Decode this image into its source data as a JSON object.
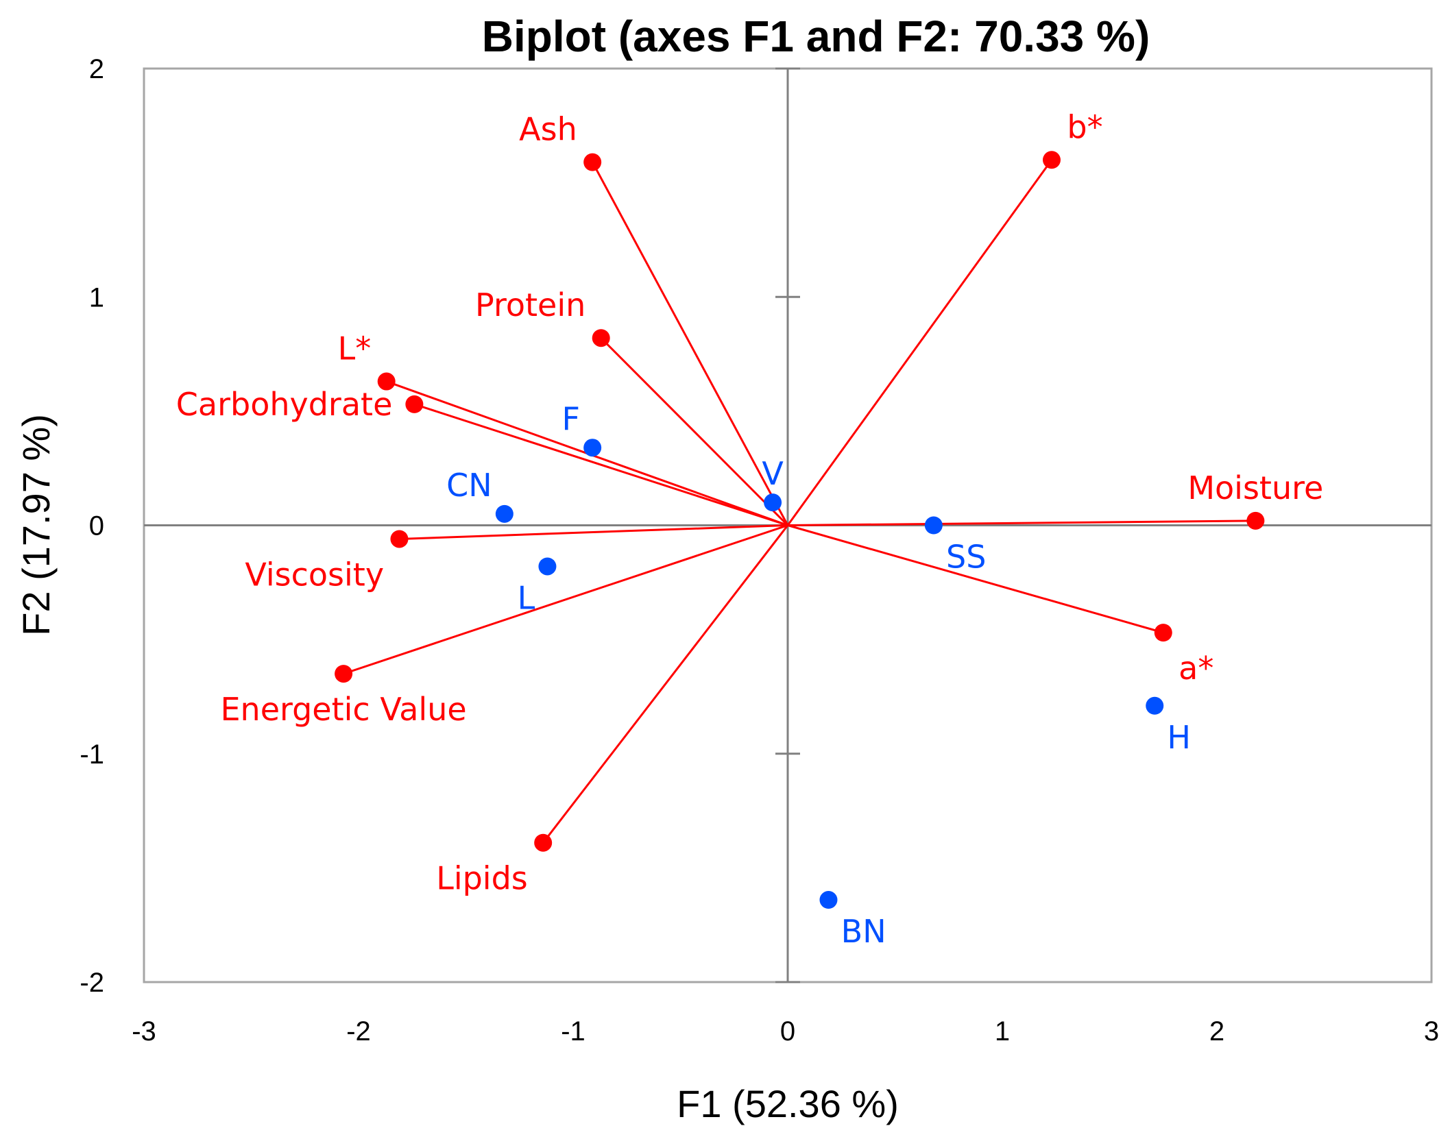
{
  "chart_data": {
    "type": "scatter",
    "subtype": "biplot",
    "title": "Biplot (axes F1 and F2: 70.33 %)",
    "xlabel": "F1 (52.36 %)",
    "ylabel": "F2 (17.97 %)",
    "xlim": [
      -3,
      3
    ],
    "ylim": [
      -2,
      2
    ],
    "xticks": [
      "-3",
      "-2",
      "-1",
      "0",
      "1",
      "2",
      "3"
    ],
    "yticks": [
      "2",
      "1",
      "0",
      "-1",
      "-2"
    ],
    "colors": {
      "variables": "#ff0000",
      "observations": "#0050ff",
      "axes": "#808080",
      "frame": "#a6a6a6"
    },
    "variables": [
      {
        "name": "Ash",
        "x": -0.91,
        "y": 1.59,
        "label_pos": "above-left"
      },
      {
        "name": "b*",
        "x": 1.23,
        "y": 1.6,
        "label_pos": "above-right"
      },
      {
        "name": "Protein",
        "x": -0.87,
        "y": 0.82,
        "label_pos": "above-left"
      },
      {
        "name": "L*",
        "x": -1.87,
        "y": 0.63,
        "label_pos": "above-left"
      },
      {
        "name": "Carbohydrate",
        "x": -1.74,
        "y": 0.53,
        "label_pos": "left"
      },
      {
        "name": "Moisture",
        "x": 2.18,
        "y": 0.02,
        "label_pos": "above"
      },
      {
        "name": "Viscosity",
        "x": -1.81,
        "y": -0.06,
        "label_pos": "below-left"
      },
      {
        "name": "a*",
        "x": 1.75,
        "y": -0.47,
        "label_pos": "below-right"
      },
      {
        "name": "Energetic Value",
        "x": -2.07,
        "y": -0.65,
        "label_pos": "below"
      },
      {
        "name": "Lipids",
        "x": -1.14,
        "y": -1.39,
        "label_pos": "below-left"
      }
    ],
    "observations": [
      {
        "name": "F",
        "x": -0.91,
        "y": 0.34,
        "label_pos": "above-left"
      },
      {
        "name": "CN",
        "x": -1.32,
        "y": 0.05,
        "label_pos": "above-left"
      },
      {
        "name": "V",
        "x": -0.07,
        "y": 0.1,
        "label_pos": "above"
      },
      {
        "name": "SS",
        "x": 0.68,
        "y": 0.0,
        "label_pos": "below-right"
      },
      {
        "name": "L",
        "x": -1.12,
        "y": -0.18,
        "label_pos": "below-left"
      },
      {
        "name": "H",
        "x": 1.71,
        "y": -0.79,
        "label_pos": "below-right"
      },
      {
        "name": "BN",
        "x": 0.19,
        "y": -1.64,
        "label_pos": "below-right"
      }
    ]
  }
}
